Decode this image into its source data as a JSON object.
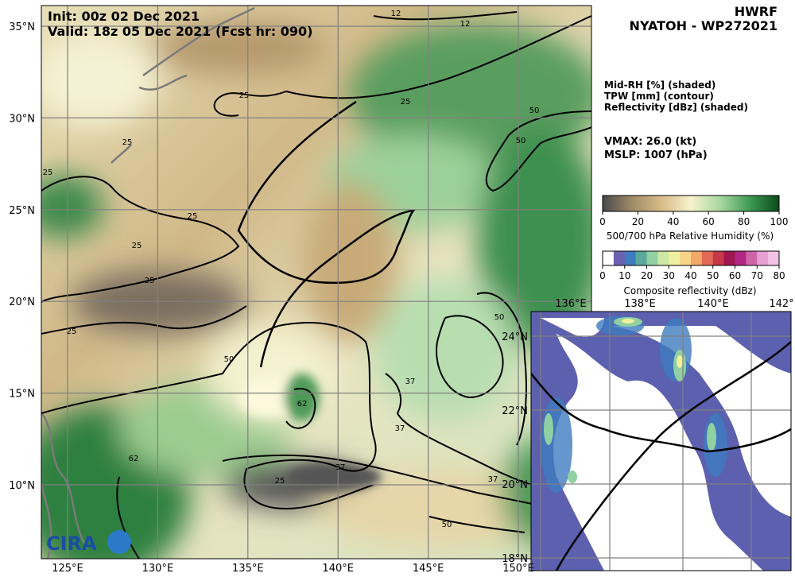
{
  "header": {
    "init": "Init:   00z 02 Dec 2021",
    "valid": "Valid: 18z 05 Dec 2021 (Fcst hr: 090)",
    "model": "HWRF",
    "storm": "NYATOH - WP272021"
  },
  "legend": {
    "lines": [
      "Mid-RH [%] (shaded)",
      "TPW [mm] (contour)",
      "Reflectivity [dBz] (shaded)"
    ],
    "vmax": "VMAX:  26.0 (kt)",
    "mslp": "MSLP: 1007 (hPa)"
  },
  "colorbar_rh": {
    "ticks": [
      0,
      20,
      40,
      60,
      80,
      100
    ],
    "label": "500/700 hPa Relative Humidity (%)",
    "colors": [
      "#4a4a4a",
      "#a08a68",
      "#d8bc88",
      "#f6f2cc",
      "#a8d8a0",
      "#3e9a52",
      "#0a4a1c"
    ]
  },
  "colorbar_refl": {
    "ticks": [
      0,
      10,
      20,
      30,
      40,
      50,
      60,
      70,
      80
    ],
    "label": "Composite reflectivity (dBz)",
    "colors": [
      "#ffffff",
      "#6a62b0",
      "#3e7cc0",
      "#5aaa9e",
      "#90d0a2",
      "#cce8a2",
      "#eef0a0",
      "#f8d488",
      "#f2a866",
      "#e26a56",
      "#c43848",
      "#a01650",
      "#b02884",
      "#d064a8",
      "#e6a0d2",
      "#f2c2e4"
    ]
  },
  "map": {
    "lon_labels": [
      "125°E",
      "130°E",
      "135°E",
      "140°E",
      "145°E",
      "150°E"
    ],
    "lat_labels": [
      "10°N",
      "15°N",
      "20°N",
      "25°N",
      "30°N",
      "35°N"
    ],
    "contour_labels": [
      "12",
      "12",
      "25",
      "25",
      "25",
      "25",
      "25",
      "25",
      "25",
      "25",
      "50",
      "50",
      "50",
      "50",
      "37",
      "37",
      "37",
      "37",
      "62",
      "62",
      "50",
      "25"
    ]
  },
  "inset": {
    "lon_labels": [
      "136°E",
      "138°E",
      "140°E",
      "142°"
    ],
    "lat_labels": [
      "24°N",
      "22°N",
      "20°N",
      "18°N"
    ]
  }
}
